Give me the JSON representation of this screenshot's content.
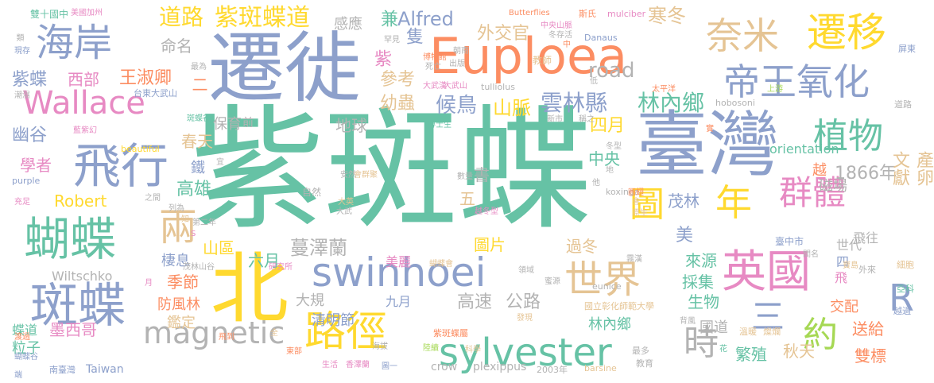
{
  "palette": {
    "teal": "#66c2a5",
    "orange": "#fc8d62",
    "blue": "#8da0cb",
    "pink": "#e78ac3",
    "green": "#a6d854",
    "yellow": "#ffd92f",
    "tan": "#e5c494",
    "gray": "#b3b3b3"
  },
  "words": [
    "紫斑蝶",
    "臺灣",
    "遷徙",
    "Euploea",
    "北",
    "swinhoei",
    "英國",
    "世界",
    "路徑",
    "奈米",
    "遷移",
    "帝王氧化",
    "海岸",
    "Wallace",
    "飛行",
    "蝴蝶",
    "斑蝶",
    "magnetic",
    "sylvester",
    "植物",
    "群體",
    "年",
    "兩",
    "圖",
    "R",
    "三",
    "約",
    "時",
    "紫斑蝶道",
    "道路",
    "雲林縣",
    "林內鄉",
    "候鳥",
    "山脈",
    "road",
    "外交官",
    "寒冬",
    "Alfred",
    "紫蝶",
    "西部",
    "王淑卿",
    "幽谷",
    "學者",
    "保育",
    "地球",
    "幼蟲",
    "參考",
    "紫",
    "隻",
    "兼",
    "感應",
    "命名",
    "四月",
    "中央",
    "春天",
    "高雄",
    "鐵",
    "Robert",
    "1866年",
    "越",
    "茂林",
    "文獻",
    "產卵",
    "磁場",
    "飛往",
    "山區",
    "六月",
    "蔓澤蘭",
    "圖片",
    "美",
    "季節",
    "棲息",
    "防風林",
    "鑑定",
    "墨西哥",
    "粒子",
    "蝶道",
    "Wiltschko",
    "大規",
    "清明節",
    "九月",
    "高速",
    "公路",
    "生物",
    "過冬",
    "來源",
    "採集",
    "交配",
    "美麗",
    "五",
    "書",
    "orientation",
    "世代",
    "四",
    "飛",
    "送給",
    "雙標",
    "繁殖",
    "秋天",
    "國道",
    "林內鄉",
    "前",
    "Taiwan",
    "crow",
    "plexippus",
    "雙十國中",
    "美國加州",
    "Butterflies",
    "斯氏",
    "mulciber",
    "紫斑蝶屬",
    "國立彰化師範大學",
    "eunice",
    "tulliolus",
    "hobosoni",
    "koxinga",
    "purple",
    "beautiful",
    "Danaus",
    "大武漢",
    "博士生",
    "冬型",
    "大武山",
    "中央山脈",
    "安然",
    "數量",
    "自然",
    "大英",
    "研究所",
    "茂林山谷",
    "第二年",
    "越冬型",
    "霧漢",
    "台東大武山",
    "藍紫幻",
    "斑蝶谷",
    "教師",
    "最多",
    "教育",
    "2003年",
    "barsine",
    "屏東",
    "上游",
    "道路",
    "細胞",
    "亞科",
    "越過",
    "外來",
    "寶島",
    "閻名",
    "臺中市",
    "出版",
    "死亡",
    "博物館",
    "罕見",
    "冬存活",
    "朝南",
    "稱之",
    "新市",
    "南臺灣",
    "東部",
    "飛到",
    "生活",
    "香澤蘭",
    "圖一",
    "海拔",
    "科學",
    "陸續",
    "會群聚",
    "背風",
    "溫暖",
    "燦爛",
    "蝴蝶會",
    "發現",
    "領域",
    "端",
    "類",
    "現存",
    "潮濕",
    "充足",
    "渡過",
    "蝴蝶谷",
    "知",
    "之間",
    "列為",
    "宜",
    "大武",
    "低",
    "太平洋",
    "花",
    "全",
    "月",
    "S",
    "他",
    "會",
    "原生",
    "圓翅",
    "二",
    "最為",
    "實",
    "中",
    "地",
    "蜜源"
  ]
}
